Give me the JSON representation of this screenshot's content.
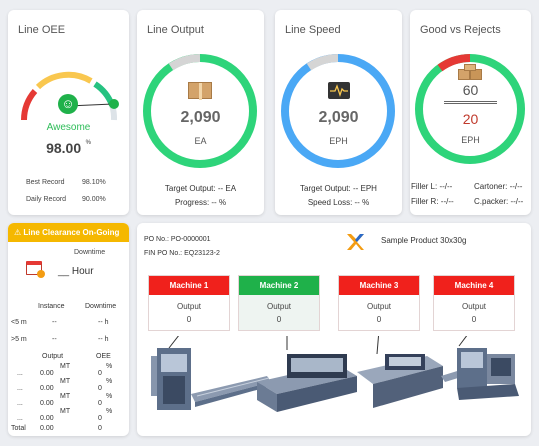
{
  "oee": {
    "title": "Line OEE",
    "status": "Awesome",
    "value": "98.00",
    "unit": "%",
    "best_label": "Best Record",
    "best_value": "98.10%",
    "daily_label": "Daily Record",
    "daily_value": "90.00%",
    "gauge_fraction": 0.98,
    "colors": {
      "low": "#e53935",
      "mid": "#f9c74f",
      "high": "#26c281",
      "status": "#2ebd59"
    }
  },
  "output": {
    "title": "Line Output",
    "value": "2,090",
    "unit": "EA",
    "target": "Target Output: -- EA",
    "progress": "Progress: -- %",
    "ring_color": "#2ed47a",
    "icon": "box-icon"
  },
  "speed": {
    "title": "Line Speed",
    "value": "2,090",
    "unit": "EPH",
    "target": "Target Output: -- EPH",
    "loss": "Speed Loss: -- %",
    "ring_color": "#4aa8f5",
    "icon": "pulse-monitor-icon"
  },
  "good": {
    "title": "Good vs Rejects",
    "good": "60",
    "rejects": "20",
    "unit": "EPH",
    "filler_l": "Filler L: --/--",
    "filler_r": "Filler R: --/--",
    "cartoner": "Cartoner: --/--",
    "cpacker": "C.packer: --/--",
    "ring_color": "#2ed47a",
    "reject_color": "#e53935",
    "icon": "boxes-icon"
  },
  "clearance": {
    "banner": "Line Clearance On-Going",
    "banner_color": "#f5b800",
    "downtime_label": "Downtime",
    "downtime_value": "__ Hour",
    "col_instance": "Instance",
    "col_downtime": "Downtime",
    "rows": [
      {
        "label": "<5 m",
        "instance": "--",
        "downtime": "-- h"
      },
      {
        "label": ">5 m",
        "instance": "--",
        "downtime": "-- h"
      }
    ],
    "col_output": "Output",
    "col_oee": "OEE",
    "mt": "MT",
    "pct": "%",
    "summary": [
      {
        "label": "...",
        "output": "0.00",
        "oee": "0"
      },
      {
        "label": "...",
        "output": "0.00",
        "oee": "0"
      },
      {
        "label": "...",
        "output": "0.00",
        "oee": "0"
      },
      {
        "label": "...",
        "output": "0.00",
        "oee": "0"
      },
      {
        "label": "Total",
        "output": "0.00",
        "oee": "0"
      }
    ]
  },
  "line": {
    "po_label": "PO No.:",
    "po_value": "PO-0000001",
    "fin_label": "FIN PO No.:",
    "fin_value": "EQ23123-2",
    "product": "Sample Product 30x30g",
    "machines": [
      {
        "name": "Machine 1",
        "label": "Output",
        "value": "0",
        "color": "#f0211c",
        "bg": "#ffffff"
      },
      {
        "name": "Machine 2",
        "label": "Output",
        "value": "0",
        "color": "#1fb14a",
        "bg": "#eef4f1"
      },
      {
        "name": "Machine 3",
        "label": "Output",
        "value": "0",
        "color": "#f0211c",
        "bg": "#ffffff"
      },
      {
        "name": "Machine 4",
        "label": "Output",
        "value": "0",
        "color": "#f0211c",
        "bg": "#ffffff"
      }
    ]
  }
}
